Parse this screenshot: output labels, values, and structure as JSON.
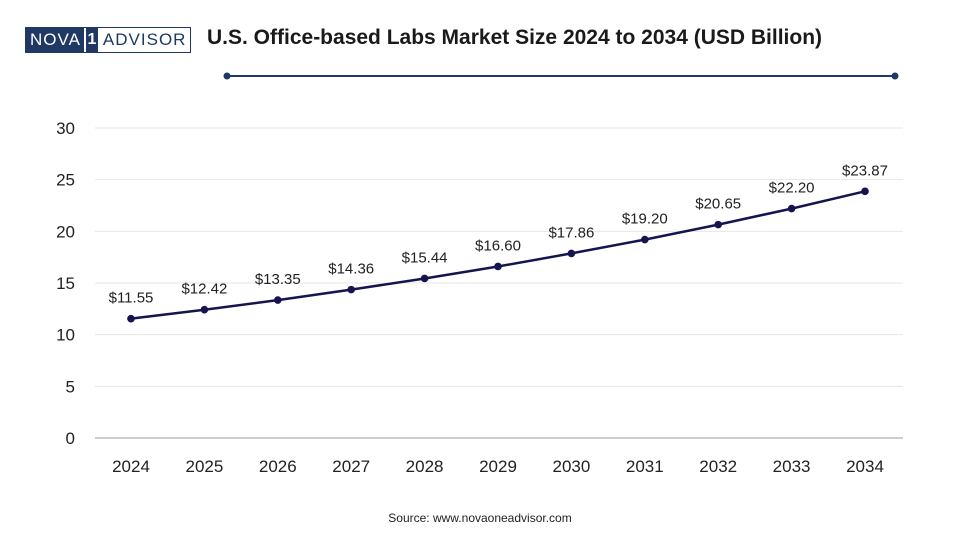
{
  "logo": {
    "left": "NOVA",
    "mid": "1",
    "right": "ADVISOR"
  },
  "source": "Source: www.novaoneadvisor.com",
  "colors": {
    "line": "#14144f",
    "header_line": "#1f3864",
    "grid": "#e6e6e6",
    "axis": "#bdbdbd"
  },
  "chart_data": {
    "type": "line",
    "title": "U.S. Office-based Labs Market Size 2024 to 2034 (USD Billion)",
    "xlabel": "",
    "ylabel": "",
    "categories": [
      "2024",
      "2025",
      "2026",
      "2027",
      "2028",
      "2029",
      "2030",
      "2031",
      "2032",
      "2033",
      "2034"
    ],
    "series": [
      {
        "name": "Market Size (USD Billion)",
        "values": [
          11.55,
          12.42,
          13.35,
          14.36,
          15.44,
          16.6,
          17.86,
          19.2,
          20.65,
          22.2,
          23.87
        ],
        "labels": [
          "$11.55",
          "$12.42",
          "$13.35",
          "$14.36",
          "$15.44",
          "$16.60",
          "$17.86",
          "$19.20",
          "$20.65",
          "$22.20",
          "$23.87"
        ]
      }
    ],
    "ylim": [
      0,
      30
    ],
    "yticks": [
      0,
      5,
      10,
      15,
      20,
      25,
      30
    ],
    "grid": true,
    "legend": "none"
  }
}
